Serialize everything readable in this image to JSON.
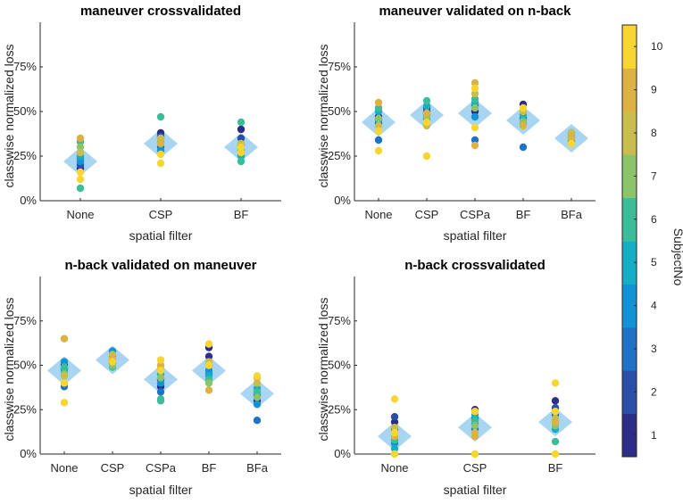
{
  "chart_data": {
    "type": "scatter",
    "colorbar": {
      "label": "SubjectNo",
      "ticks": [
        "1",
        "2",
        "3",
        "4",
        "5",
        "6",
        "7",
        "8",
        "9",
        "10"
      ],
      "colors": [
        "#2c2d88",
        "#2a4fa8",
        "#1f73c7",
        "#1393d6",
        "#14afc6",
        "#3cbd9a",
        "#8cc46a",
        "#c9bd4d",
        "#deb144",
        "#f8d530"
      ]
    },
    "mean_marker_color": "#9ed0ef",
    "panels": [
      {
        "title": "maneuver crossvalidated",
        "xlabel": "spatial filter",
        "ylabel": "classwise normalized loss",
        "categories": [
          "None",
          "CSP",
          "BF"
        ],
        "yticks": [
          "0%",
          "25%",
          "50%",
          "75%"
        ],
        "ylim": [
          0,
          100
        ],
        "means": [
          22,
          32,
          30
        ],
        "points": [
          [
            [
              1,
              18
            ],
            [
              2,
              20
            ],
            [
              3,
              24
            ],
            [
              4,
              22
            ],
            [
              5,
              25
            ],
            [
              6,
              33
            ],
            [
              6,
              7
            ],
            [
              7,
              30
            ],
            [
              8,
              27
            ],
            [
              9,
              35
            ],
            [
              10,
              12
            ],
            [
              10,
              16
            ]
          ],
          [
            [
              1,
              38
            ],
            [
              2,
              36
            ],
            [
              3,
              30
            ],
            [
              4,
              28
            ],
            [
              5,
              33
            ],
            [
              6,
              47
            ],
            [
              7,
              34
            ],
            [
              8,
              35
            ],
            [
              9,
              32
            ],
            [
              10,
              21
            ],
            [
              10,
              26
            ]
          ],
          [
            [
              1,
              40
            ],
            [
              2,
              35
            ],
            [
              3,
              28
            ],
            [
              4,
              31
            ],
            [
              5,
              25
            ],
            [
              6,
              44
            ],
            [
              6,
              22
            ],
            [
              7,
              29
            ],
            [
              8,
              32
            ],
            [
              10,
              30
            ],
            [
              10,
              27
            ]
          ]
        ]
      },
      {
        "title": "maneuver validated on n-back",
        "xlabel": "spatial filter",
        "ylabel": "classwise normalized loss",
        "categories": [
          "None",
          "CSP",
          "CSPa",
          "BF",
          "BFa"
        ],
        "yticks": [
          "0%",
          "25%",
          "50%",
          "75%"
        ],
        "ylim": [
          0,
          100
        ],
        "means": [
          44,
          48,
          49,
          45,
          35
        ],
        "points": [
          [
            [
              1,
              47
            ],
            [
              2,
              43
            ],
            [
              3,
              34
            ],
            [
              4,
              45
            ],
            [
              5,
              50
            ],
            [
              6,
              52
            ],
            [
              7,
              46
            ],
            [
              8,
              42
            ],
            [
              9,
              55
            ],
            [
              10,
              28
            ],
            [
              10,
              39
            ]
          ],
          [
            [
              1,
              52
            ],
            [
              2,
              50
            ],
            [
              3,
              48
            ],
            [
              4,
              46
            ],
            [
              5,
              53
            ],
            [
              6,
              56
            ],
            [
              7,
              47
            ],
            [
              8,
              42
            ],
            [
              9,
              49
            ],
            [
              10,
              25
            ],
            [
              10,
              44
            ]
          ],
          [
            [
              1,
              50
            ],
            [
              2,
              53
            ],
            [
              3,
              34
            ],
            [
              4,
              47
            ],
            [
              5,
              55
            ],
            [
              6,
              57
            ],
            [
              7,
              52
            ],
            [
              8,
              60
            ],
            [
              9,
              66
            ],
            [
              9,
              31
            ],
            [
              10,
              41
            ],
            [
              10,
              63
            ]
          ],
          [
            [
              1,
              54
            ],
            [
              2,
              46
            ],
            [
              3,
              30
            ],
            [
              4,
              43
            ],
            [
              5,
              48
            ],
            [
              6,
              45
            ],
            [
              7,
              44
            ],
            [
              8,
              50
            ],
            [
              9,
              42
            ],
            [
              10,
              52
            ]
          ],
          [
            [
              1,
              38
            ],
            [
              2,
              36
            ],
            [
              3,
              33
            ],
            [
              4,
              37
            ],
            [
              5,
              35
            ],
            [
              6,
              34
            ],
            [
              7,
              36
            ],
            [
              8,
              38
            ],
            [
              9,
              35
            ],
            [
              10,
              32
            ]
          ]
        ]
      },
      {
        "title": "n-back validated on maneuver",
        "xlabel": "spatial filter",
        "ylabel": "classwise normalized loss",
        "categories": [
          "None",
          "CSP",
          "CSPa",
          "BF",
          "BFa"
        ],
        "yticks": [
          "0%",
          "25%",
          "50%",
          "75%"
        ],
        "ylim": [
          0,
          100
        ],
        "means": [
          47,
          53,
          42,
          47,
          34
        ],
        "points": [
          [
            [
              1,
              50
            ],
            [
              2,
              48
            ],
            [
              3,
              38
            ],
            [
              4,
              52
            ],
            [
              5,
              47
            ],
            [
              6,
              49
            ],
            [
              7,
              45
            ],
            [
              8,
              44
            ],
            [
              9,
              65
            ],
            [
              10,
              29
            ],
            [
              10,
              40
            ]
          ],
          [
            [
              1,
              52
            ],
            [
              2,
              55
            ],
            [
              3,
              51
            ],
            [
              4,
              58
            ],
            [
              5,
              53
            ],
            [
              6,
              49
            ],
            [
              7,
              50
            ],
            [
              8,
              56
            ],
            [
              9,
              54
            ],
            [
              10,
              52
            ]
          ],
          [
            [
              1,
              38
            ],
            [
              2,
              42
            ],
            [
              3,
              35
            ],
            [
              4,
              40
            ],
            [
              5,
              45
            ],
            [
              6,
              30
            ],
            [
              6,
              31
            ],
            [
              7,
              43
            ],
            [
              8,
              48
            ],
            [
              9,
              50
            ],
            [
              10,
              53
            ],
            [
              10,
              47
            ]
          ],
          [
            [
              1,
              55
            ],
            [
              1,
              60
            ],
            [
              2,
              50
            ],
            [
              3,
              45
            ],
            [
              4,
              47
            ],
            [
              5,
              44
            ],
            [
              6,
              42
            ],
            [
              7,
              40
            ],
            [
              8,
              52
            ],
            [
              9,
              36
            ],
            [
              10,
              62
            ],
            [
              10,
              50
            ]
          ],
          [
            [
              1,
              30
            ],
            [
              2,
              33
            ],
            [
              3,
              19
            ],
            [
              4,
              28
            ],
            [
              5,
              37
            ],
            [
              6,
              35
            ],
            [
              7,
              32
            ],
            [
              8,
              40
            ],
            [
              9,
              43
            ],
            [
              10,
              44
            ]
          ]
        ]
      },
      {
        "title": "n-back crossvalidated",
        "xlabel": "spatial filter",
        "ylabel": "classwise normalized loss",
        "categories": [
          "None",
          "CSP",
          "BF"
        ],
        "yticks": [
          "0%",
          "25%",
          "50%",
          "75%"
        ],
        "ylim": [
          0,
          100
        ],
        "means": [
          10,
          15,
          18
        ],
        "points": [
          [
            [
              1,
              18
            ],
            [
              2,
              21
            ],
            [
              3,
              14
            ],
            [
              4,
              6
            ],
            [
              5,
              3
            ],
            [
              6,
              8
            ],
            [
              7,
              12
            ],
            [
              8,
              15
            ],
            [
              9,
              10
            ],
            [
              10,
              31
            ],
            [
              10,
              0
            ],
            [
              10,
              12
            ]
          ],
          [
            [
              1,
              25
            ],
            [
              2,
              20
            ],
            [
              3,
              14
            ],
            [
              4,
              17
            ],
            [
              5,
              22
            ],
            [
              6,
              19
            ],
            [
              7,
              16
            ],
            [
              8,
              12
            ],
            [
              9,
              10
            ],
            [
              10,
              0
            ],
            [
              10,
              24
            ]
          ],
          [
            [
              1,
              30
            ],
            [
              2,
              26
            ],
            [
              3,
              22
            ],
            [
              4,
              18
            ],
            [
              5,
              14
            ],
            [
              6,
              7
            ],
            [
              7,
              16
            ],
            [
              8,
              20
            ],
            [
              9,
              18
            ],
            [
              10,
              40
            ],
            [
              10,
              0
            ],
            [
              10,
              24
            ]
          ]
        ]
      }
    ]
  }
}
